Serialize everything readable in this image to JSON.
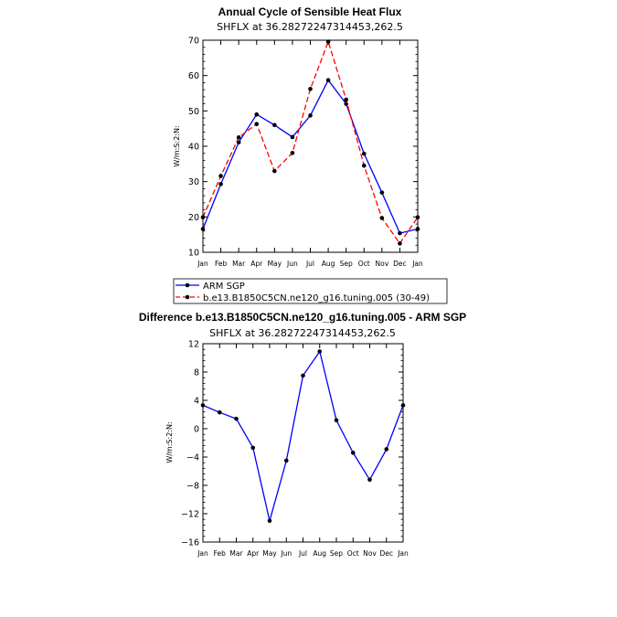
{
  "chart_data": [
    {
      "type": "line",
      "title": "Annual Cycle of Sensible Heat Flux",
      "subtitle": "SHFLX at 36.28272247314453,262.5",
      "ylabel": "W/m:S:2:N:",
      "categories": [
        "Jan",
        "Feb",
        "Mar",
        "Apr",
        "May",
        "Jun",
        "Jul",
        "Aug",
        "Sep",
        "Oct",
        "Nov",
        "Dec",
        "Jan"
      ],
      "ylim": [
        10,
        70
      ],
      "yticks": [
        "10",
        "20",
        "30",
        "40",
        "50",
        "60",
        "70"
      ],
      "series": [
        {
          "name": "ARM SGP",
          "color": "#0000ff",
          "dash": "solid",
          "values": [
            16.6,
            29.3,
            41.1,
            49.0,
            46.0,
            42.6,
            48.7,
            58.7,
            52.0,
            37.9,
            26.9,
            15.4,
            16.6
          ]
        },
        {
          "name": "b.e13.B1850C5CN.ne120_g16.tuning.005 (30-49)",
          "color": "#ff0000",
          "dash": "dashed",
          "values": [
            19.9,
            31.6,
            42.5,
            46.3,
            33.0,
            38.1,
            56.2,
            69.6,
            53.2,
            34.5,
            19.7,
            12.5,
            19.9
          ]
        }
      ],
      "legend": {
        "placement": "below",
        "entries": [
          "ARM SGP",
          "b.e13.B1850C5CN.ne120_g16.tuning.005 (30-49)"
        ]
      }
    },
    {
      "type": "line",
      "title": "Difference b.e13.B1850C5CN.ne120_g16.tuning.005 - ARM SGP",
      "subtitle": "SHFLX at 36.28272247314453,262.5",
      "ylabel": "W/m:S:2:N:",
      "categories": [
        "Jan",
        "Feb",
        "Mar",
        "Apr",
        "May",
        "Jun",
        "Jul",
        "Aug",
        "Sep",
        "Oct",
        "Nov",
        "Dec",
        "Jan"
      ],
      "ylim": [
        -16,
        12
      ],
      "yticks": [
        "−16",
        "−12",
        "−8",
        "−4",
        "0",
        "4",
        "8",
        "12"
      ],
      "series": [
        {
          "name": "",
          "color": "#0000ff",
          "dash": "solid",
          "values": [
            3.3,
            2.3,
            1.4,
            -2.7,
            -13.0,
            -4.5,
            7.5,
            10.9,
            1.2,
            -3.4,
            -7.2,
            -2.9,
            3.3
          ]
        }
      ]
    }
  ]
}
